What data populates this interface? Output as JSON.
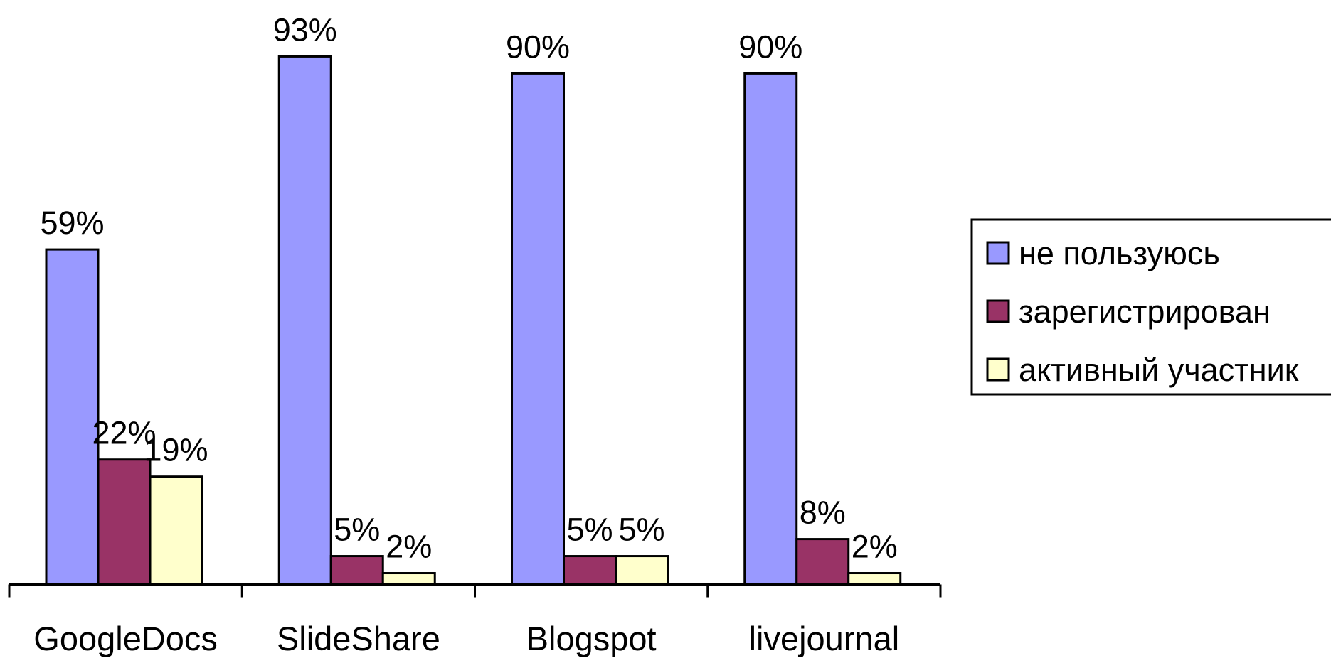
{
  "chart_data": {
    "type": "bar",
    "categories": [
      "GoogleDocs",
      "SlideShare",
      "Blogspot",
      "livejournal"
    ],
    "series": [
      {
        "name": "не пользуюсь",
        "color": "#9999ff",
        "values": [
          59,
          93,
          90,
          90
        ],
        "value_labels": [
          "59%",
          "93%",
          "90%",
          "90%"
        ]
      },
      {
        "name": "зарегистрирован",
        "color": "#993366",
        "values": [
          22,
          5,
          5,
          8
        ],
        "value_labels": [
          "22%",
          "5%",
          "5%",
          "8%"
        ]
      },
      {
        "name": "активный участник",
        "color": "#ffffcc",
        "values": [
          19,
          2,
          5,
          2
        ],
        "value_labels": [
          "19%",
          "2%",
          "5%",
          "2%"
        ]
      }
    ],
    "ylim": [
      0,
      100
    ],
    "legend": "right"
  }
}
